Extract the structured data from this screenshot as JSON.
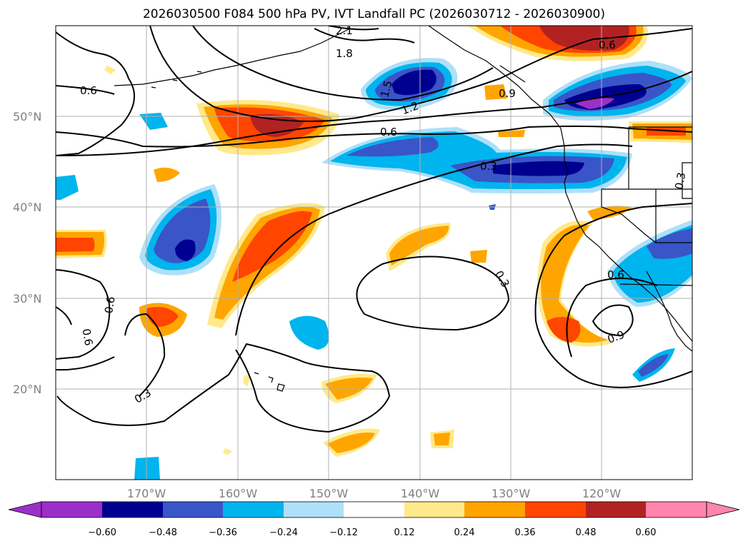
{
  "title": "2026030500 F084 500 hPa PV, IVT Landfall PC (2026030712 - 2026030900)",
  "lat_labels": [
    "50°N",
    "40°N",
    "30°N",
    "20°N"
  ],
  "lon_labels": [
    "170°W",
    "160°W",
    "150°W",
    "140°W",
    "130°W",
    "120°W"
  ],
  "colorbar": {
    "ticks": [
      "−0.60",
      "−0.48",
      "−0.36",
      "−0.24",
      "−0.12",
      "0.12",
      "0.24",
      "0.36",
      "0.48",
      "0.60"
    ],
    "colors": [
      "#9b30c8",
      "#000090",
      "#3a55c8",
      "#00b4ee",
      "#aee0f8",
      "#ffffff",
      "#ffe98a",
      "#ffa500",
      "#ff4500",
      "#b22222",
      "#ff85ad"
    ]
  },
  "contour_labels": [
    "2.1",
    "1.8",
    "1.5",
    "1.2",
    "0.6",
    "0.6",
    "0.9",
    "0.3",
    "0.3",
    "0.6",
    "0.6",
    "0.3",
    "0.6",
    "0.6",
    "0.3",
    "0.9"
  ],
  "colors": {
    "grid": "#b0b0b0",
    "contour": "#000000",
    "coast": "#000000"
  }
}
